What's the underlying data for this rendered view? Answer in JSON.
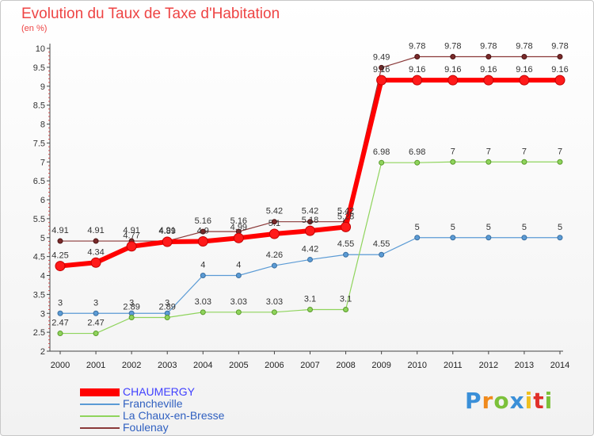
{
  "title": "Evolution du Taux de Taxe d'Habitation",
  "subtitle": "(en %)",
  "logo": {
    "text": "Proxiti",
    "letters": [
      "P",
      "r",
      "o",
      "x",
      "i",
      "t",
      "i"
    ],
    "colors": [
      "#3a8fd8",
      "#f08a1c",
      "#7cc13a",
      "#3a8fd8",
      "#f0c020",
      "#e0302a",
      "#7cc13a"
    ]
  },
  "chart_data": {
    "type": "line",
    "x": [
      "2000",
      "2001",
      "2002",
      "2003",
      "2004",
      "2005",
      "2006",
      "2007",
      "2008",
      "2009",
      "2010",
      "2011",
      "2012",
      "2013",
      "2014"
    ],
    "ylim": [
      2,
      10
    ],
    "yticks": [
      "2",
      "2.5",
      "3",
      "3.5",
      "4",
      "4.5",
      "5",
      "5.5",
      "6",
      "6.5",
      "7",
      "7.5",
      "8",
      "8.5",
      "9",
      "9.5",
      "10"
    ],
    "grid": false,
    "legend_position": "bottom-left",
    "series": [
      {
        "name": "CHAUMERGY",
        "color": "#ff0000",
        "values": [
          4.25,
          4.34,
          4.77,
          4.89,
          4.9,
          4.99,
          5.1,
          5.18,
          5.28,
          9.16,
          9.16,
          9.16,
          9.16,
          9.16,
          9.16
        ],
        "labels": [
          "4.25",
          "4.34",
          "4.77",
          "4.89",
          "4.9",
          "4.99",
          "5.1",
          "5.18",
          "5.28",
          "9.16",
          "9.16",
          "9.16",
          "9.16",
          "9.16",
          "9.16"
        ]
      },
      {
        "name": "Francheville",
        "color": "#5b9bd5",
        "values": [
          3,
          3,
          3,
          3,
          4,
          4,
          4.26,
          4.42,
          4.55,
          4.55,
          5,
          5,
          5,
          5,
          5
        ],
        "labels": [
          "3",
          "3",
          "3",
          "3",
          "4",
          "4",
          "4.26",
          "4.42",
          "4.55",
          "4.55",
          "5",
          "5",
          "5",
          "5",
          "5"
        ]
      },
      {
        "name": "La Chaux-en-Bresse",
        "color": "#8fd45c",
        "values": [
          2.47,
          2.47,
          2.89,
          2.89,
          3.03,
          3.03,
          3.03,
          3.1,
          3.1,
          6.98,
          6.98,
          7,
          7,
          7,
          7
        ],
        "labels": [
          "2.47",
          "2.47",
          "2.89",
          "2.89",
          "3.03",
          "3.03",
          "3.03",
          "3.1",
          "3.1",
          "6.98",
          "6.98",
          "7",
          "7",
          "7",
          "7"
        ]
      },
      {
        "name": "Foulenay",
        "color": "#8b3a3a",
        "values": [
          4.91,
          4.91,
          4.91,
          4.91,
          5.16,
          5.16,
          5.42,
          5.42,
          5.42,
          9.49,
          9.78,
          9.78,
          9.78,
          9.78,
          9.78
        ],
        "labels": [
          "4.91",
          "4.91",
          "4.91",
          "4.91",
          "5.16",
          "5.16",
          "5.42",
          "5.42",
          "5.42",
          "9.49",
          "9.78",
          "9.78",
          "9.78",
          "9.78",
          "9.78"
        ]
      }
    ]
  }
}
